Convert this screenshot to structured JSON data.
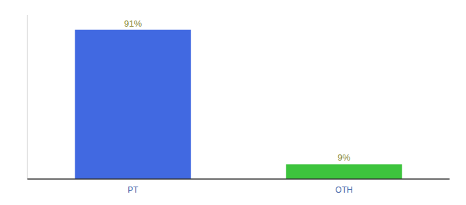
{
  "chart_data": {
    "type": "bar",
    "categories": [
      "PT",
      "OTH"
    ],
    "values": [
      91,
      9
    ],
    "value_labels": [
      "91%",
      "9%"
    ],
    "colors": [
      "#4169e1",
      "#3dc43d"
    ],
    "ylim": [
      0,
      100
    ],
    "data_labels": true,
    "tick_labels": "x",
    "grid": false
  }
}
